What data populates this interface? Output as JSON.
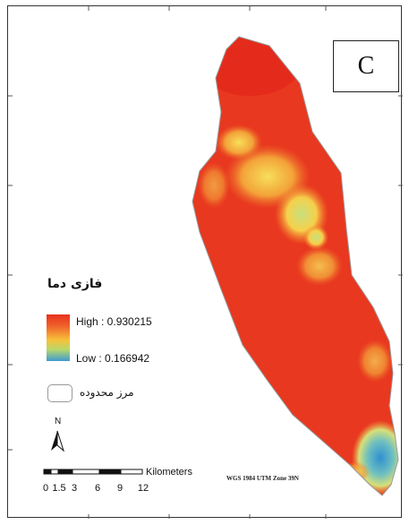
{
  "panel_label": "C",
  "legend": {
    "title": "فازی دما",
    "high_label": "High : 0.930215",
    "low_label": "Low : 0.166942",
    "boundary_label": "مرز محدوده"
  },
  "north_arrow": {
    "letter": "N"
  },
  "scale_bar": {
    "unit_label": "Kilometers",
    "ticks": [
      "0",
      "1.5",
      "3",
      "6",
      "9",
      "12"
    ]
  },
  "crs_label": "WGS 1984 UTM Zone 39N",
  "colors": {
    "high": "#e8321e",
    "mid_high": "#f0622a",
    "mid": "#f7c23a",
    "mid_low": "#b9d869",
    "low": "#3f9bd3"
  }
}
